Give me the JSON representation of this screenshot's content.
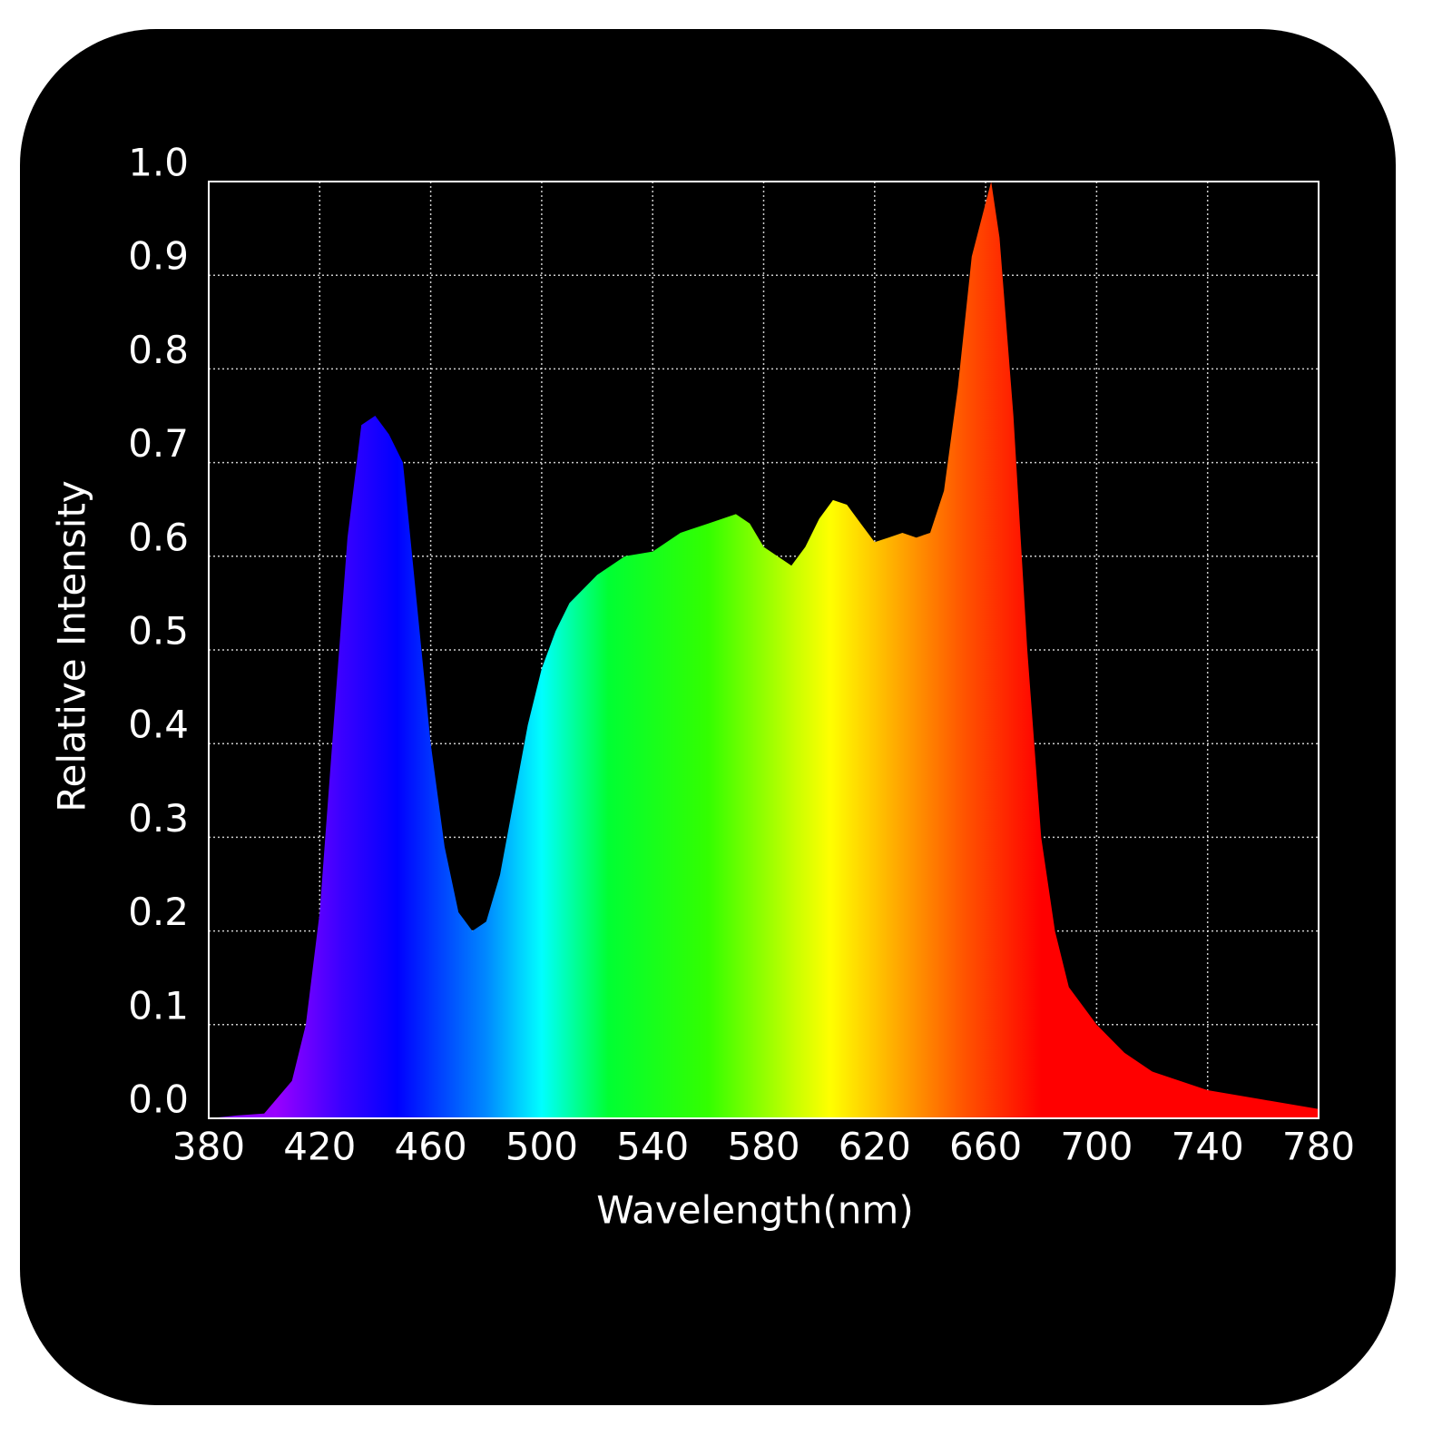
{
  "chart_data": {
    "type": "area",
    "x_label": "Wavelength(nm)",
    "y_label": "Relative Intensity",
    "x": [
      380,
      390,
      400,
      410,
      415,
      420,
      425,
      430,
      435,
      440,
      445,
      450,
      455,
      460,
      465,
      470,
      475,
      480,
      485,
      490,
      495,
      500,
      505,
      510,
      520,
      530,
      540,
      550,
      560,
      570,
      575,
      580,
      590,
      595,
      600,
      605,
      610,
      615,
      620,
      625,
      630,
      635,
      640,
      645,
      650,
      655,
      662,
      665,
      670,
      675,
      680,
      685,
      690,
      700,
      710,
      720,
      740,
      760,
      780
    ],
    "values": [
      0.0,
      0.003,
      0.005,
      0.04,
      0.1,
      0.22,
      0.42,
      0.62,
      0.74,
      0.75,
      0.73,
      0.7,
      0.55,
      0.4,
      0.29,
      0.22,
      0.2,
      0.21,
      0.26,
      0.34,
      0.42,
      0.48,
      0.52,
      0.55,
      0.58,
      0.6,
      0.605,
      0.625,
      0.635,
      0.645,
      0.635,
      0.61,
      0.59,
      0.61,
      0.64,
      0.66,
      0.655,
      0.635,
      0.615,
      0.62,
      0.625,
      0.62,
      0.625,
      0.67,
      0.78,
      0.92,
      1.0,
      0.94,
      0.75,
      0.5,
      0.3,
      0.2,
      0.14,
      0.1,
      0.07,
      0.05,
      0.03,
      0.02,
      0.01
    ],
    "xlim": [
      380,
      780
    ],
    "ylim": [
      0,
      1
    ],
    "xticks": [
      380,
      420,
      460,
      500,
      540,
      580,
      620,
      660,
      700,
      740,
      780
    ],
    "yticks": [
      {
        "value": 0,
        "label": "0.0"
      },
      0.1,
      0.2,
      0.3,
      0.4,
      0.5,
      0.6,
      0.7,
      0.8,
      0.9,
      {
        "value": 1,
        "label": "1.0"
      }
    ],
    "grid": true
  }
}
